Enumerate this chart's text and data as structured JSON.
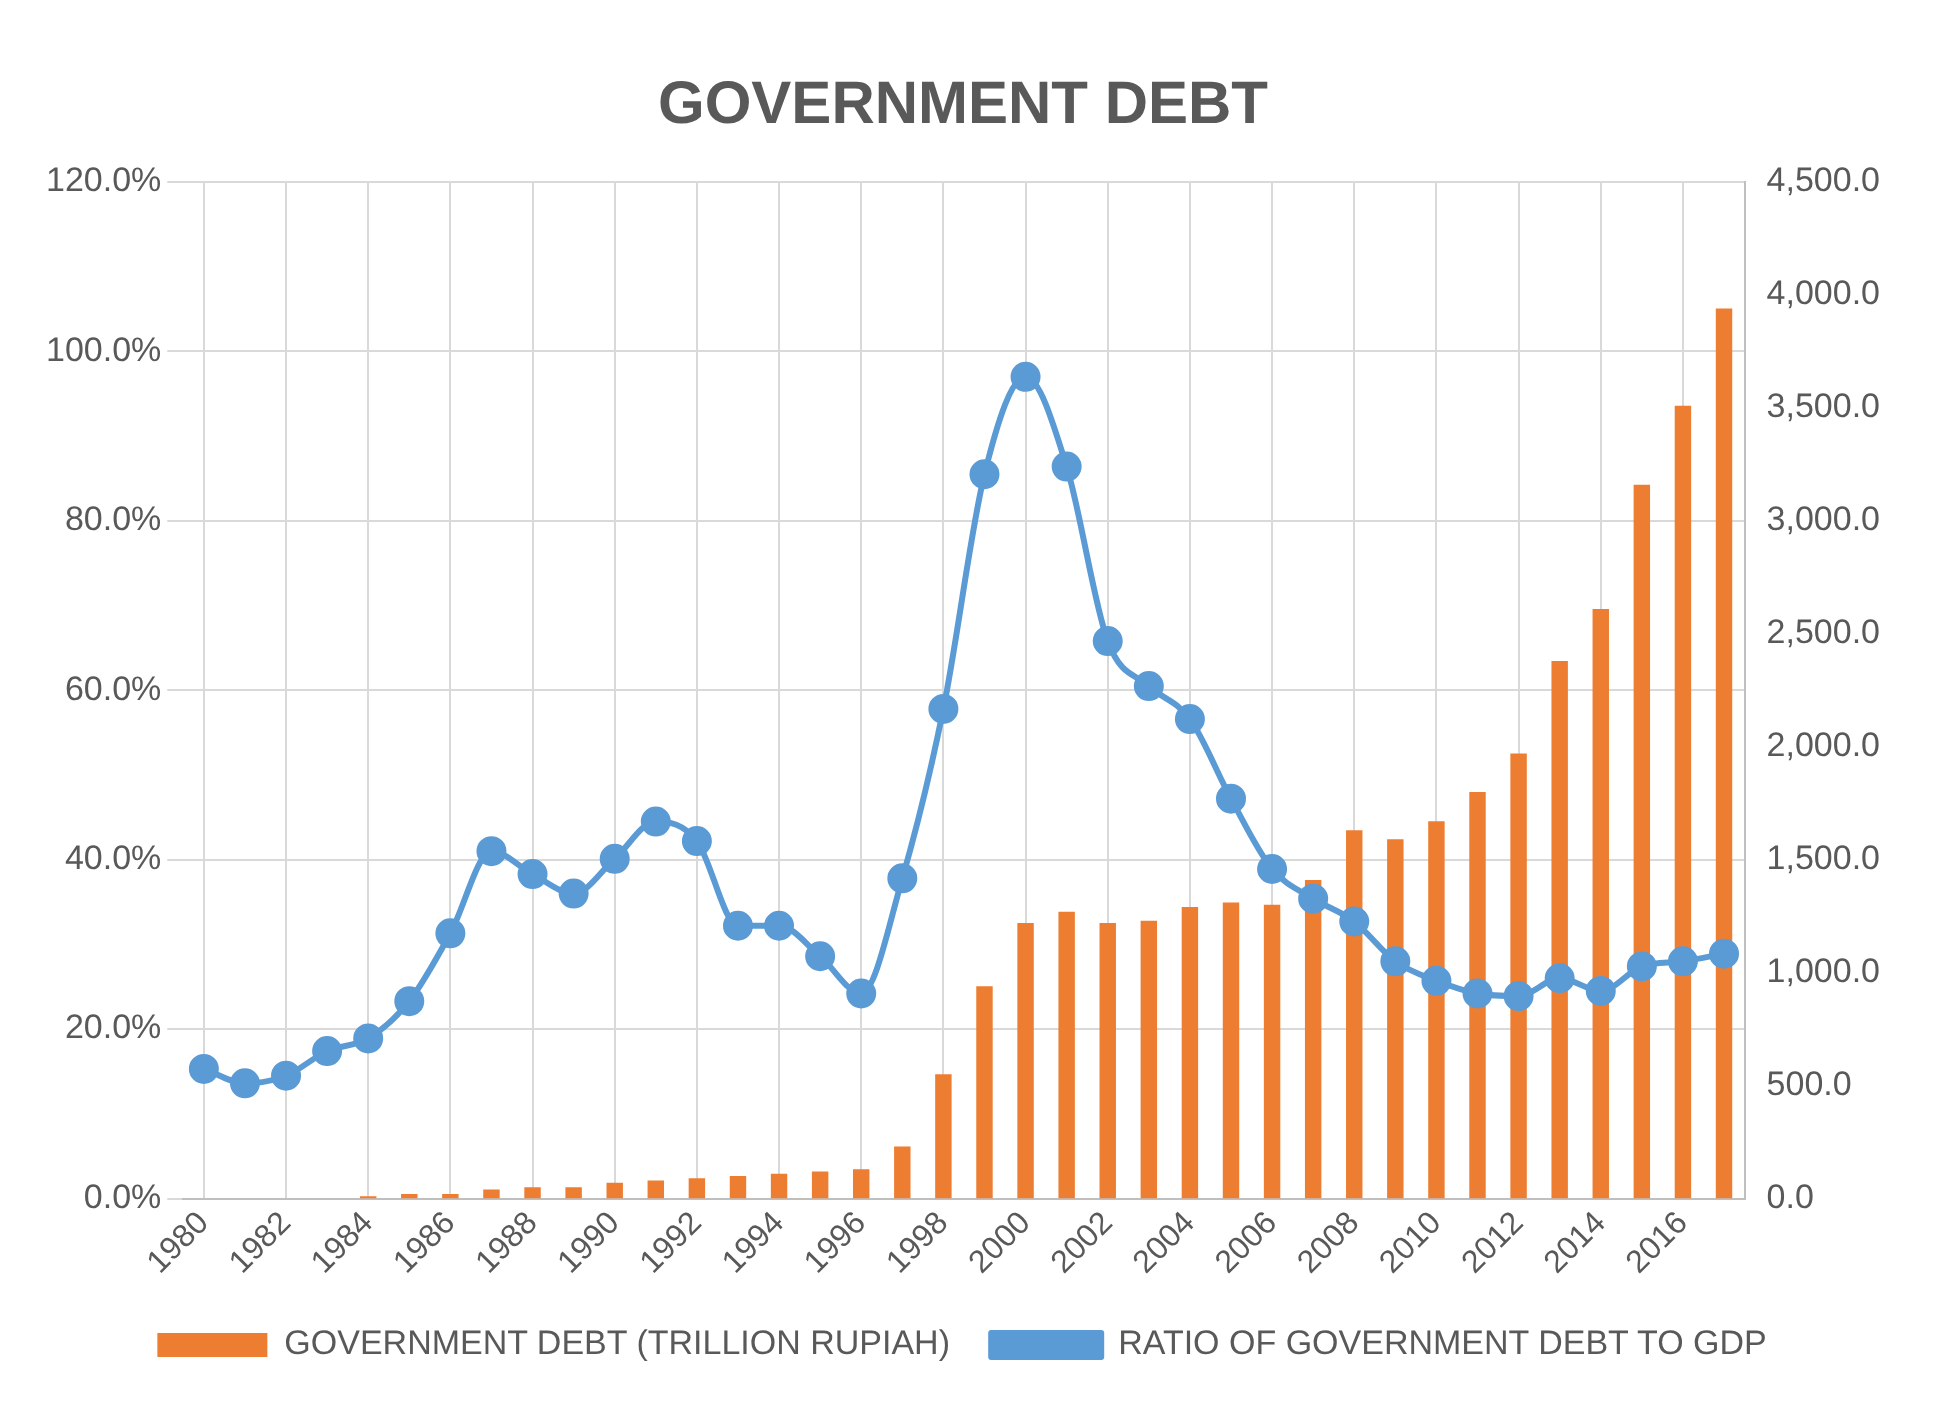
{
  "chart_data": {
    "type": "bar",
    "title": "GOVERNMENT DEBT",
    "categories": [
      "1980",
      null,
      "1982",
      null,
      "1984",
      null,
      "1986",
      null,
      "1988",
      null,
      "1990",
      null,
      "1992",
      null,
      "1994",
      null,
      "1996",
      null,
      "1998",
      null,
      "2000",
      null,
      "2002",
      null,
      "2004",
      null,
      "2006",
      null,
      "2008",
      null,
      "2010",
      null,
      "2012",
      null,
      "2014",
      null,
      "2016",
      null
    ],
    "series": [
      {
        "name": "GOVERNMENT DEBT (TRILLION RUPIAH)",
        "axis": "y2",
        "color": "#ed7d31",
        "values": [
          0,
          0,
          0,
          0,
          10,
          20,
          20,
          40,
          50,
          50,
          70,
          80,
          90,
          100,
          110,
          120,
          130,
          230,
          550,
          940,
          1220,
          1270,
          1220,
          1230,
          1290,
          1310,
          1300,
          1410,
          1630,
          1590,
          1670,
          1800,
          1970,
          2380,
          2610,
          3160,
          3510,
          3940
        ]
      },
      {
        "name": "RATIO OF GOVERNMENT DEBT TO GDP",
        "type": "line",
        "axis": "y",
        "color": "#5b9bd5",
        "marker": "circle",
        "values": [
          15.3,
          13.6,
          14.5,
          17.4,
          18.9,
          23.3,
          31.3,
          41.0,
          38.3,
          36.0,
          40.1,
          44.5,
          42.2,
          32.2,
          32.2,
          28.6,
          24.2,
          37.8,
          57.8,
          85.5,
          97.0,
          86.4,
          65.8,
          60.5,
          56.6,
          47.2,
          38.9,
          35.4,
          32.7,
          28.0,
          25.7,
          24.2,
          23.9,
          26.0,
          24.5,
          27.4,
          28.0,
          28.9
        ]
      }
    ],
    "ylim": [
      0,
      120
    ],
    "yticks": [
      {
        "value": 0,
        "label": "0.0%"
      },
      {
        "value": 20,
        "label": "20.0%"
      },
      {
        "value": 40,
        "label": "40.0%"
      },
      {
        "value": 60,
        "label": "60.0%"
      },
      {
        "value": 80,
        "label": "80.0%"
      },
      {
        "value": 100,
        "label": "100.0%"
      },
      {
        "value": 120,
        "label": "120.0%"
      }
    ],
    "y2lim": [
      0,
      4500
    ],
    "y2ticks": [
      {
        "value": 0,
        "label": "0.0"
      },
      {
        "value": 500,
        "label": "500.0"
      },
      {
        "value": 1000,
        "label": "1,000.0"
      },
      {
        "value": 1500,
        "label": "1,500.0"
      },
      {
        "value": 2000,
        "label": "2,000.0"
      },
      {
        "value": 2500,
        "label": "2,500.0"
      },
      {
        "value": 3000,
        "label": "3,000.0"
      },
      {
        "value": 3500,
        "label": "3,500.0"
      },
      {
        "value": 4000,
        "label": "4,000.0"
      },
      {
        "value": 4500,
        "label": "4,500.0"
      }
    ],
    "grid": true,
    "legend": "bottom"
  }
}
